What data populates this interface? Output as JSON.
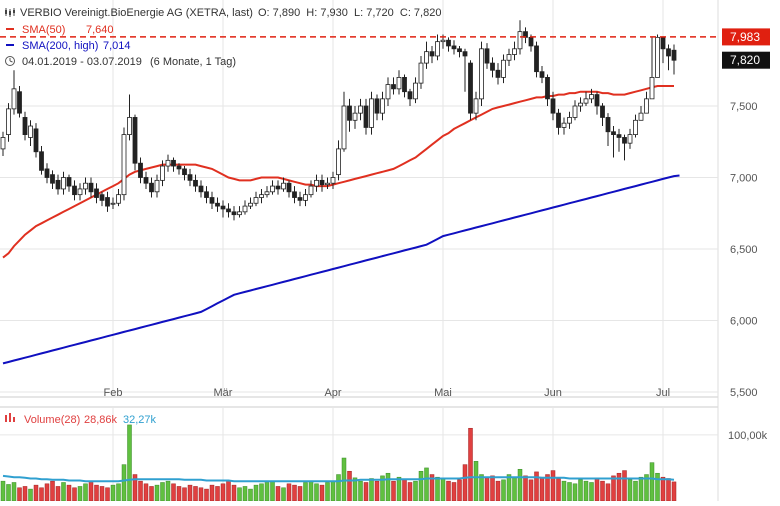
{
  "header": {
    "title": "VERBIO Vereinigt.BioEnergie AG (XETRA, last)",
    "ohlc": "O: 7,890  H: 7,930  L: 7,720  C: 7,820",
    "sma50_label": "SMA(50)",
    "sma50_value": "7,640",
    "sma200_label": "SMA(200, high)",
    "sma200_value": "7,014",
    "range": "04.01.2019 - 03.07.2019",
    "period": "(6 Monate, 1 Tag)",
    "volume_label": "Volume(28)",
    "volume_value": "28,86k",
    "volume_avg": "32,27k"
  },
  "colors": {
    "sma50": "#e03020",
    "sma200": "#1010c0",
    "up": "#60c040",
    "down": "#e04040",
    "avg": "#30a0d0",
    "price_line": "#e02010",
    "last_tag": "#111111"
  },
  "icons": {
    "header_icon": "candlestick-icon",
    "range_icon": "clock-icon"
  },
  "chart_data": {
    "type": "candlestick",
    "y_ticks": [
      "7,500",
      "7,000",
      "6,500",
      "6,000",
      "5,500"
    ],
    "y_tick_values": [
      7.5,
      7.0,
      6.5,
      6.0,
      5.5
    ],
    "ylim": [
      5.5,
      8.05
    ],
    "x_ticks": [
      "Feb",
      "Mär",
      "Apr",
      "Mai",
      "Jun",
      "Jul"
    ],
    "x_tick_index": [
      20,
      40,
      60,
      80,
      100,
      120
    ],
    "last_price_label": "7,820",
    "high_line_label": "7,983",
    "high_line_value": 7.983,
    "last_price": 7.82,
    "volume_tick": "100,00k",
    "volume_tick_value": 100,
    "volume_ylim": [
      0,
      130
    ],
    "closes": [
      7.28,
      7.48,
      7.62,
      7.45,
      7.3,
      7.36,
      7.18,
      7.05,
      7.0,
      6.96,
      6.92,
      7.0,
      6.94,
      6.88,
      6.92,
      6.96,
      6.9,
      6.86,
      6.84,
      6.8,
      6.82,
      6.88,
      7.3,
      7.42,
      7.1,
      7.0,
      6.96,
      6.9,
      6.98,
      7.08,
      7.12,
      7.08,
      7.06,
      7.02,
      6.98,
      6.94,
      6.9,
      6.86,
      6.82,
      6.8,
      6.78,
      6.76,
      6.74,
      6.76,
      6.8,
      6.82,
      6.86,
      6.88,
      6.9,
      6.94,
      6.92,
      6.96,
      6.9,
      6.86,
      6.84,
      6.88,
      6.94,
      6.98,
      6.95,
      6.96,
      7.0,
      7.2,
      7.5,
      7.4,
      7.45,
      7.5,
      7.35,
      7.55,
      7.45,
      7.55,
      7.65,
      7.62,
      7.7,
      7.6,
      7.55,
      7.66,
      7.8,
      7.88,
      7.85,
      7.95,
      7.96,
      7.92,
      7.9,
      7.88,
      7.85,
      7.45,
      7.55,
      7.9,
      7.8,
      7.75,
      7.7,
      7.82,
      7.86,
      7.9,
      8.02,
      7.98,
      7.92,
      7.74,
      7.7,
      7.55,
      7.45,
      7.35,
      7.38,
      7.42,
      7.5,
      7.52,
      7.55,
      7.58,
      7.5,
      7.42,
      7.32,
      7.3,
      7.28,
      7.24,
      7.3,
      7.4,
      7.45,
      7.55,
      7.7,
      7.98,
      7.9,
      7.85,
      7.82
    ],
    "opens": [
      7.2,
      7.3,
      7.48,
      7.6,
      7.42,
      7.28,
      7.34,
      7.18,
      7.06,
      7.02,
      6.98,
      6.92,
      7.0,
      6.94,
      6.88,
      6.92,
      6.96,
      6.92,
      6.88,
      6.86,
      6.82,
      6.82,
      6.88,
      7.3,
      7.42,
      7.1,
      7.0,
      6.96,
      6.9,
      6.98,
      7.08,
      7.12,
      7.08,
      7.06,
      7.02,
      6.98,
      6.94,
      6.9,
      6.86,
      6.82,
      6.8,
      6.78,
      6.76,
      6.74,
      6.76,
      6.8,
      6.82,
      6.86,
      6.88,
      6.9,
      6.94,
      6.92,
      6.96,
      6.9,
      6.86,
      6.84,
      6.88,
      6.94,
      6.98,
      6.95,
      6.96,
      7.02,
      7.2,
      7.5,
      7.4,
      7.45,
      7.5,
      7.35,
      7.55,
      7.45,
      7.55,
      7.65,
      7.62,
      7.7,
      7.6,
      7.55,
      7.66,
      7.8,
      7.88,
      7.85,
      7.95,
      7.96,
      7.92,
      7.9,
      7.88,
      7.8,
      7.45,
      7.55,
      7.9,
      7.8,
      7.75,
      7.7,
      7.82,
      7.86,
      7.9,
      8.02,
      7.98,
      7.92,
      7.74,
      7.7,
      7.55,
      7.45,
      7.35,
      7.38,
      7.42,
      7.5,
      7.52,
      7.55,
      7.58,
      7.5,
      7.42,
      7.32,
      7.3,
      7.28,
      7.24,
      7.3,
      7.4,
      7.45,
      7.55,
      7.7,
      7.98,
      7.9,
      7.89
    ],
    "highs": [
      7.32,
      7.52,
      7.75,
      7.64,
      7.46,
      7.4,
      7.38,
      7.22,
      7.1,
      7.05,
      7.02,
      7.04,
      7.02,
      6.98,
      6.96,
      7.0,
      7.0,
      6.96,
      6.9,
      6.9,
      6.86,
      6.92,
      7.35,
      7.58,
      7.44,
      7.14,
      7.04,
      7.0,
      7.02,
      7.12,
      7.16,
      7.14,
      7.1,
      7.08,
      7.06,
      7.02,
      6.98,
      6.94,
      6.9,
      6.86,
      6.84,
      6.82,
      6.8,
      6.8,
      6.84,
      6.86,
      6.9,
      6.92,
      6.94,
      6.98,
      6.98,
      7.0,
      6.98,
      6.94,
      6.9,
      6.92,
      6.98,
      7.02,
      7.02,
      7.0,
      7.04,
      7.26,
      7.6,
      7.55,
      7.5,
      7.55,
      7.55,
      7.6,
      7.58,
      7.6,
      7.7,
      7.7,
      7.75,
      7.72,
      7.62,
      7.7,
      7.85,
      7.95,
      7.92,
      8.0,
      8.0,
      7.98,
      7.96,
      7.92,
      7.9,
      7.82,
      7.6,
      7.95,
      7.94,
      7.84,
      7.8,
      7.86,
      7.9,
      7.95,
      8.1,
      8.05,
      8.0,
      7.95,
      7.78,
      7.72,
      7.6,
      7.48,
      7.42,
      7.46,
      7.54,
      7.56,
      7.6,
      7.62,
      7.6,
      7.52,
      7.45,
      7.36,
      7.34,
      7.3,
      7.34,
      7.44,
      7.5,
      7.6,
      7.98,
      8.0,
      7.96,
      7.93,
      7.93
    ],
    "lows": [
      7.15,
      7.25,
      7.44,
      7.42,
      7.26,
      7.22,
      7.14,
      7.02,
      6.96,
      6.92,
      6.88,
      6.88,
      6.9,
      6.84,
      6.84,
      6.88,
      6.86,
      6.82,
      6.8,
      6.76,
      6.78,
      6.8,
      6.84,
      7.26,
      7.05,
      6.96,
      6.92,
      6.86,
      6.86,
      6.94,
      7.04,
      7.04,
      7.02,
      6.98,
      6.94,
      6.9,
      6.86,
      6.82,
      6.78,
      6.76,
      6.72,
      6.72,
      6.7,
      6.72,
      6.74,
      6.78,
      6.8,
      6.82,
      6.86,
      6.88,
      6.88,
      6.9,
      6.86,
      6.82,
      6.8,
      6.8,
      6.86,
      6.9,
      6.9,
      6.92,
      6.92,
      6.98,
      7.18,
      7.32,
      7.34,
      7.4,
      7.3,
      7.3,
      7.4,
      7.4,
      7.5,
      7.58,
      7.58,
      7.56,
      7.5,
      7.52,
      7.62,
      7.76,
      7.8,
      7.82,
      7.9,
      7.88,
      7.86,
      7.84,
      7.6,
      7.4,
      7.4,
      7.5,
      7.76,
      7.7,
      7.65,
      7.66,
      7.78,
      7.82,
      7.86,
      7.94,
      7.88,
      7.7,
      7.66,
      7.5,
      7.4,
      7.3,
      7.3,
      7.34,
      7.4,
      7.46,
      7.5,
      7.52,
      7.44,
      7.36,
      7.22,
      7.14,
      7.18,
      7.12,
      7.2,
      7.28,
      7.4,
      7.5,
      7.6,
      7.84,
      7.8,
      7.75,
      7.72
    ],
    "sma50": [
      6.44,
      6.47,
      6.52,
      6.56,
      6.6,
      6.63,
      6.66,
      6.68,
      6.7,
      6.72,
      6.74,
      6.76,
      6.78,
      6.8,
      6.82,
      6.84,
      6.86,
      6.88,
      6.9,
      6.92,
      6.94,
      6.96,
      6.99,
      7.02,
      7.04,
      7.05,
      7.06,
      7.07,
      7.08,
      7.09,
      7.09,
      7.09,
      7.09,
      7.09,
      7.09,
      7.09,
      7.08,
      7.07,
      7.06,
      7.04,
      7.02,
      7.0,
      6.99,
      6.98,
      6.98,
      6.98,
      6.99,
      7.0,
      7.0,
      7.0,
      7.0,
      6.99,
      6.98,
      6.97,
      6.96,
      6.95,
      6.95,
      6.94,
      6.94,
      6.94,
      6.95,
      6.96,
      6.97,
      6.98,
      6.99,
      7.0,
      7.01,
      7.02,
      7.03,
      7.04,
      7.05,
      7.06,
      7.08,
      7.1,
      7.12,
      7.14,
      7.17,
      7.2,
      7.23,
      7.26,
      7.29,
      7.31,
      7.34,
      7.36,
      7.38,
      7.4,
      7.42,
      7.44,
      7.46,
      7.48,
      7.49,
      7.5,
      7.51,
      7.52,
      7.53,
      7.54,
      7.55,
      7.56,
      7.56,
      7.57,
      7.57,
      7.58,
      7.58,
      7.59,
      7.59,
      7.6,
      7.6,
      7.6,
      7.6,
      7.59,
      7.59,
      7.58,
      7.58,
      7.58,
      7.59,
      7.6,
      7.61,
      7.62,
      7.63,
      7.64,
      7.64,
      7.64,
      7.64
    ],
    "sma200": [
      5.7,
      5.71,
      5.72,
      5.73,
      5.74,
      5.75,
      5.76,
      5.77,
      5.78,
      5.79,
      5.8,
      5.81,
      5.82,
      5.83,
      5.84,
      5.85,
      5.86,
      5.87,
      5.88,
      5.89,
      5.9,
      5.91,
      5.92,
      5.93,
      5.94,
      5.95,
      5.96,
      5.97,
      5.98,
      5.99,
      6.0,
      6.01,
      6.02,
      6.03,
      6.04,
      6.05,
      6.06,
      6.08,
      6.1,
      6.12,
      6.14,
      6.16,
      6.18,
      6.19,
      6.2,
      6.21,
      6.22,
      6.23,
      6.24,
      6.25,
      6.26,
      6.27,
      6.28,
      6.29,
      6.3,
      6.31,
      6.32,
      6.33,
      6.34,
      6.35,
      6.36,
      6.37,
      6.38,
      6.39,
      6.4,
      6.41,
      6.42,
      6.43,
      6.44,
      6.45,
      6.46,
      6.47,
      6.48,
      6.49,
      6.5,
      6.51,
      6.52,
      6.53,
      6.55,
      6.57,
      6.59,
      6.6,
      6.61,
      6.62,
      6.63,
      6.64,
      6.65,
      6.66,
      6.67,
      6.68,
      6.69,
      6.7,
      6.71,
      6.72,
      6.73,
      6.74,
      6.75,
      6.76,
      6.77,
      6.78,
      6.79,
      6.8,
      6.81,
      6.82,
      6.83,
      6.84,
      6.85,
      6.86,
      6.87,
      6.88,
      6.89,
      6.9,
      6.91,
      6.92,
      6.93,
      6.94,
      6.95,
      6.96,
      6.97,
      6.98,
      6.99,
      7.0,
      7.01,
      7.014
    ],
    "volumes": [
      30,
      25,
      28,
      20,
      22,
      18,
      24,
      20,
      26,
      30,
      22,
      28,
      24,
      20,
      22,
      26,
      28,
      24,
      22,
      20,
      24,
      26,
      55,
      115,
      40,
      30,
      26,
      22,
      24,
      28,
      30,
      26,
      22,
      20,
      24,
      22,
      20,
      18,
      24,
      22,
      26,
      30,
      24,
      20,
      22,
      18,
      24,
      26,
      28,
      30,
      22,
      20,
      26,
      24,
      22,
      28,
      30,
      26,
      24,
      28,
      30,
      40,
      65,
      45,
      35,
      30,
      28,
      34,
      30,
      38,
      42,
      30,
      36,
      32,
      28,
      30,
      45,
      50,
      40,
      36,
      34,
      30,
      28,
      32,
      55,
      110,
      60,
      40,
      35,
      38,
      30,
      32,
      40,
      36,
      48,
      38,
      32,
      44,
      36,
      40,
      46,
      34,
      30,
      28,
      26,
      32,
      30,
      28,
      34,
      30,
      26,
      38,
      42,
      46,
      32,
      30,
      36,
      40,
      58,
      42,
      36,
      34,
      28.86
    ],
    "vol_avg": [
      38,
      37,
      36,
      36,
      35,
      34,
      34,
      33,
      33,
      32,
      32,
      32,
      31,
      31,
      31,
      30,
      30,
      30,
      30,
      30,
      30,
      30,
      31,
      32,
      33,
      33,
      33,
      33,
      33,
      33,
      33,
      33,
      33,
      32,
      32,
      32,
      32,
      31,
      31,
      31,
      31,
      31,
      30,
      30,
      30,
      30,
      30,
      30,
      30,
      30,
      30,
      30,
      30,
      30,
      30,
      30,
      30,
      30,
      30,
      30,
      30,
      30,
      31,
      31,
      31,
      32,
      32,
      32,
      32,
      32,
      33,
      33,
      33,
      33,
      33,
      33,
      33,
      34,
      34,
      34,
      34,
      34,
      34,
      34,
      35,
      36,
      36,
      36,
      36,
      36,
      36,
      36,
      36,
      36,
      36,
      36,
      36,
      36,
      35,
      35,
      35,
      35,
      35,
      34,
      34,
      34,
      34,
      34,
      34,
      34,
      34,
      34,
      34,
      34,
      34,
      34,
      34,
      34,
      34,
      33,
      33,
      33,
      32.27
    ]
  }
}
